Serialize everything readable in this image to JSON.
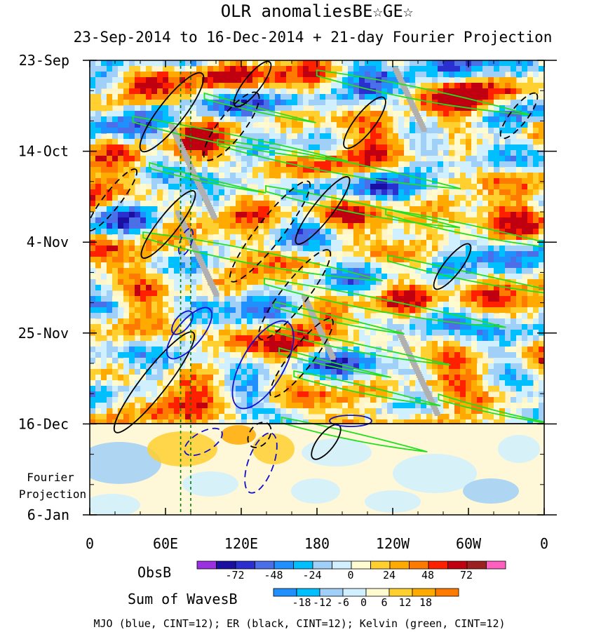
{
  "chart_data": {
    "type": "heatmap",
    "title": "OLR anomaliesBE☆GE☆",
    "subtitle": "23-Sep-2014 to 16-Dec-2014 + 21-day Fourier Projection",
    "x_tick_labels": [
      "0",
      "60E",
      "120E",
      "180",
      "120W",
      "60W",
      "0"
    ],
    "x_ticks_deg": [
      0,
      60,
      120,
      180,
      240,
      300,
      360
    ],
    "xlim": [
      0,
      360
    ],
    "y_tick_labels": [
      "23-Sep",
      "14-Oct",
      "4-Nov",
      "25-Nov",
      "16-Dec",
      "6-Jan"
    ],
    "y_ticks_day": [
      0,
      21,
      42,
      63,
      84,
      105
    ],
    "ylim": [
      0,
      105
    ],
    "observed_end_day": 84,
    "projection_label": [
      "Fourier",
      "Projection"
    ],
    "reference_lines_deg": [
      72,
      80
    ],
    "grid": false,
    "colorbars": [
      {
        "label": "ObsB",
        "tick_labels": [
          "-72",
          "-48",
          "-24",
          "0",
          "24",
          "48",
          "72"
        ],
        "colors": [
          "#9b30e0",
          "#1a0fa0",
          "#2a2fd0",
          "#4a6fe8",
          "#2090ff",
          "#00bfff",
          "#a0d0f8",
          "#d0f0ff",
          "#fffbd0",
          "#ffd030",
          "#ffaa00",
          "#ff7a00",
          "#ff2000",
          "#c00010",
          "#9c2020",
          "#ff60c0"
        ]
      },
      {
        "label": "Sum of WavesB",
        "tick_labels": [
          "-18",
          "-12",
          "-6",
          "0",
          "6",
          "12",
          "18"
        ],
        "colors": [
          "#2090ff",
          "#00bfff",
          "#a0d0f8",
          "#d0f0ff",
          "#fffbd0",
          "#ffd030",
          "#ffaa00",
          "#ff7a00"
        ]
      }
    ],
    "legend_text": "MJO (blue, CINT=12); ER (black, CINT=12); Kelvin (green, CINT=12)",
    "series_colors": {
      "MJO": "#1010d0",
      "ER": "#000000",
      "Kelvin": "#20e020"
    }
  }
}
